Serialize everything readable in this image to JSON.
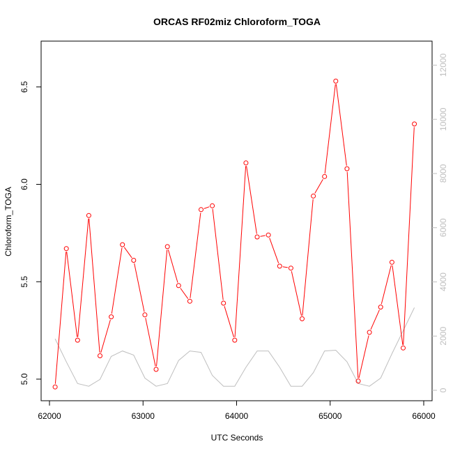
{
  "chart_data": {
    "type": "line",
    "title": "ORCAS RF02miz Chloroform_TOGA",
    "xlabel": "UTC Seconds",
    "ylabel": "Chloroform_TOGA",
    "xlim": [
      62000,
      66000
    ],
    "ylim": [
      5.0,
      6.6
    ],
    "y2lim": [
      0,
      12500
    ],
    "x_ticks": [
      62000,
      63000,
      64000,
      65000,
      66000
    ],
    "y_ticks": [
      5.0,
      5.5,
      6.0,
      6.5
    ],
    "y2_ticks": [
      0,
      2000,
      4000,
      6000,
      8000,
      10000,
      12000
    ],
    "grid": false,
    "legend": "none",
    "colors": {
      "primary": "#ff0000",
      "secondary": "#bebebe",
      "axis": "#000000"
    },
    "series": [
      {
        "axis": "left",
        "style": "line-with-open-circles",
        "color": "#ff0000",
        "x": [
          62060,
          62180,
          62300,
          62420,
          62540,
          62660,
          62780,
          62900,
          63020,
          63140,
          63260,
          63380,
          63500,
          63620,
          63740,
          63860,
          63980,
          64100,
          64220,
          64340,
          64460,
          64580,
          64700,
          64820,
          64940,
          65060,
          65180,
          65300,
          65420,
          65540,
          65660,
          65780,
          65900
        ],
        "values": [
          4.96,
          5.67,
          5.2,
          5.84,
          5.12,
          5.32,
          5.69,
          5.61,
          5.33,
          5.05,
          5.68,
          5.48,
          5.4,
          5.87,
          5.89,
          5.39,
          5.2,
          6.11,
          5.73,
          5.74,
          5.58,
          5.57,
          5.31,
          5.94,
          6.04,
          6.53,
          6.08,
          4.99,
          5.24,
          5.37,
          5.6,
          5.16,
          6.31
        ]
      },
      {
        "axis": "right",
        "style": "line",
        "color": "#bebebe",
        "x": [
          62060,
          62180,
          62300,
          62420,
          62540,
          62660,
          62780,
          62900,
          63020,
          63140,
          63260,
          63380,
          63500,
          63620,
          63740,
          63860,
          63980,
          64100,
          64220,
          64340,
          64460,
          64580,
          64700,
          64820,
          64940,
          65060,
          65180,
          65300,
          65420,
          65540,
          65660,
          65780,
          65900
        ],
        "values": [
          1900,
          1050,
          250,
          150,
          400,
          1250,
          1450,
          1300,
          450,
          150,
          250,
          1100,
          1450,
          1400,
          550,
          150,
          150,
          850,
          1450,
          1450,
          850,
          150,
          150,
          650,
          1450,
          1480,
          1050,
          250,
          150,
          450,
          1350,
          2200,
          3050
        ]
      }
    ]
  }
}
